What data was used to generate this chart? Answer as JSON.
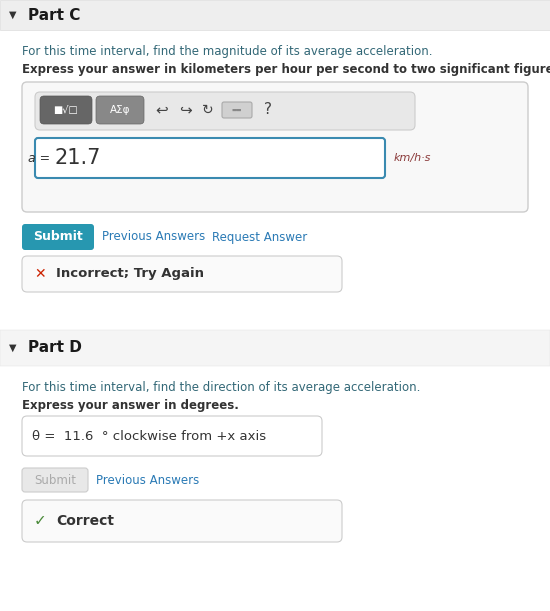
{
  "white": "#ffffff",
  "light_gray_bg": "#f0f0f0",
  "part_c_header": "Part C",
  "part_c_text1": "For this time interval, find the magnitude of its average acceleration.",
  "part_c_text2": "Express your answer in kilometers per hour per second to two significant figures.",
  "a_label": "a =",
  "a_value": "21.7",
  "unit_label": "km/h·s",
  "submit_label": "Submit",
  "prev_answers_label": "Previous Answers",
  "request_answer_label": "Request Answer",
  "incorrect_label": "Incorrect; Try Again",
  "part_d_header": "Part D",
  "part_d_text1": "For this time interval, find the direction of its average acceleration.",
  "part_d_text2": "Express your answer in degrees.",
  "theta_answer": "θ =  11.6  ° clockwise from +x axis",
  "submit_label_d": "Submit",
  "prev_answers_label_d": "Previous Answers",
  "correct_label": "Correct",
  "link_color": "#2a7ab5",
  "submit_color": "#2797b0",
  "header_color": "#1a1a1a",
  "text_color": "#333333",
  "teal_text": "#336877",
  "incorrect_red": "#cc2200",
  "correct_green": "#4a8a3a",
  "border_color": "#cccccc",
  "input_border_color": "#3a8ab0",
  "toolbar_dark": "#666666",
  "toolbar_mid": "#888888",
  "unit_color": "#8B3a3a",
  "header_bar_bg": "#eeeeee",
  "part_d_bg": "#f5f5f5"
}
